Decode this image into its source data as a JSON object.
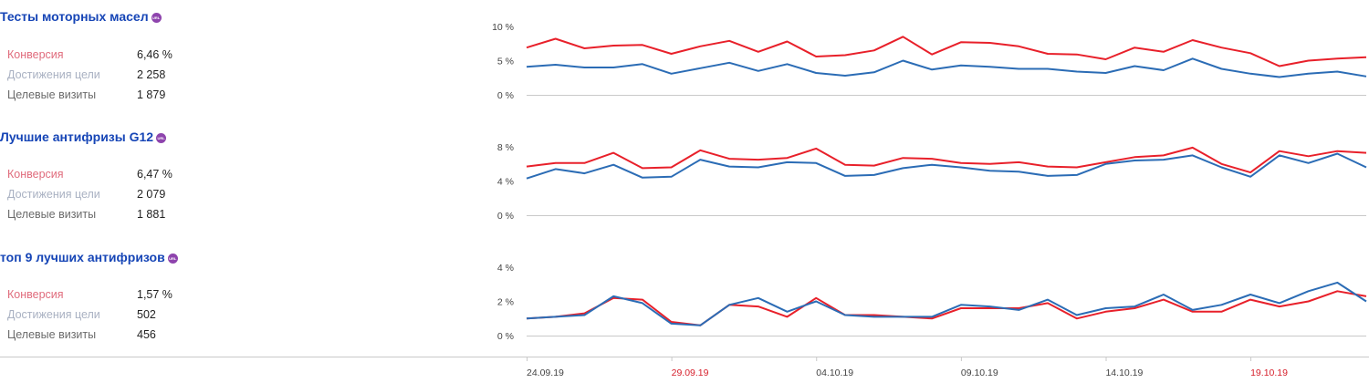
{
  "chart_data": [
    {
      "type": "line",
      "title": "Тесты моторных масел",
      "badge": "URL",
      "metrics": [
        {
          "label": "Конверсия",
          "value": "6,46 %"
        },
        {
          "label": "Достижения цели",
          "value": "2 258"
        },
        {
          "label": "Целевые визиты",
          "value": "1 879"
        }
      ],
      "yticks": [
        "10 %",
        "5 %",
        "0 %"
      ],
      "ylim": [
        0,
        10
      ],
      "series": [
        {
          "color": "#e8202a",
          "values": [
            6.9,
            8.2,
            6.8,
            7.2,
            7.3,
            6.0,
            7.1,
            7.9,
            6.3,
            7.8,
            5.6,
            5.8,
            6.5,
            8.5,
            5.9,
            7.7,
            7.6,
            7.1,
            6.0,
            5.9,
            5.2,
            6.9,
            6.3,
            8.0,
            6.9,
            6.1,
            4.2,
            5.0,
            5.3,
            5.5
          ]
        },
        {
          "color": "#2b6cb5",
          "values": [
            4.1,
            4.4,
            4.0,
            4.0,
            4.5,
            3.1,
            3.9,
            4.7,
            3.5,
            4.5,
            3.2,
            2.8,
            3.3,
            5.0,
            3.7,
            4.3,
            4.1,
            3.8,
            3.8,
            3.4,
            3.2,
            4.2,
            3.6,
            5.3,
            3.8,
            3.1,
            2.6,
            3.1,
            3.4,
            2.7
          ]
        }
      ]
    },
    {
      "type": "line",
      "title": "Лучшие антифризы G12",
      "badge": "URL",
      "metrics": [
        {
          "label": "Конверсия",
          "value": "6,47 %"
        },
        {
          "label": "Достижения цели",
          "value": "2 079"
        },
        {
          "label": "Целевые визиты",
          "value": "1 881"
        }
      ],
      "yticks": [
        "8 %",
        "4 %",
        "0 %"
      ],
      "ylim": [
        0,
        8
      ],
      "series": [
        {
          "color": "#e8202a",
          "values": [
            5.7,
            6.1,
            6.1,
            7.3,
            5.5,
            5.6,
            7.6,
            6.6,
            6.5,
            6.7,
            7.8,
            5.9,
            5.8,
            6.7,
            6.6,
            6.1,
            6.0,
            6.2,
            5.7,
            5.6,
            6.2,
            6.8,
            7.0,
            7.9,
            6.0,
            5.0,
            7.5,
            6.9,
            7.5,
            7.3
          ]
        },
        {
          "color": "#2b6cb5",
          "values": [
            4.3,
            5.4,
            4.9,
            5.9,
            4.4,
            4.5,
            6.5,
            5.7,
            5.6,
            6.2,
            6.1,
            4.6,
            4.7,
            5.5,
            5.9,
            5.6,
            5.2,
            5.1,
            4.6,
            4.7,
            6.0,
            6.4,
            6.5,
            7.0,
            5.6,
            4.5,
            7.0,
            6.1,
            7.2,
            5.6
          ]
        }
      ]
    },
    {
      "type": "line",
      "title": "топ 9 лучших антифризов",
      "badge": "URL",
      "metrics": [
        {
          "label": "Конверсия",
          "value": "1,57 %"
        },
        {
          "label": "Достижения цели",
          "value": "502"
        },
        {
          "label": "Целевые визиты",
          "value": "456"
        }
      ],
      "yticks": [
        "4 %",
        "2 %",
        "0 %"
      ],
      "ylim": [
        0,
        4
      ],
      "series": [
        {
          "color": "#e8202a",
          "values": [
            1.0,
            1.1,
            1.3,
            2.2,
            2.1,
            0.8,
            0.6,
            1.8,
            1.7,
            1.1,
            2.2,
            1.2,
            1.2,
            1.1,
            1.0,
            1.6,
            1.6,
            1.6,
            1.9,
            1.0,
            1.4,
            1.6,
            2.1,
            1.4,
            1.4,
            2.1,
            1.7,
            2.0,
            2.6,
            2.3
          ]
        },
        {
          "color": "#2b6cb5",
          "values": [
            1.0,
            1.1,
            1.2,
            2.3,
            1.9,
            0.7,
            0.6,
            1.8,
            2.2,
            1.4,
            2.0,
            1.2,
            1.1,
            1.1,
            1.1,
            1.8,
            1.7,
            1.5,
            2.1,
            1.2,
            1.6,
            1.7,
            2.4,
            1.5,
            1.8,
            2.4,
            1.9,
            2.6,
            3.1,
            2.0
          ]
        }
      ]
    }
  ],
  "x_labels": [
    {
      "label": "24.09.19",
      "index": 0,
      "weekend": false
    },
    {
      "label": "29.09.19",
      "index": 5,
      "weekend": true
    },
    {
      "label": "04.10.19",
      "index": 10,
      "weekend": false
    },
    {
      "label": "09.10.19",
      "index": 15,
      "weekend": false
    },
    {
      "label": "14.10.19",
      "index": 20,
      "weekend": false
    },
    {
      "label": "19.10.19",
      "index": 25,
      "weekend": true
    }
  ]
}
